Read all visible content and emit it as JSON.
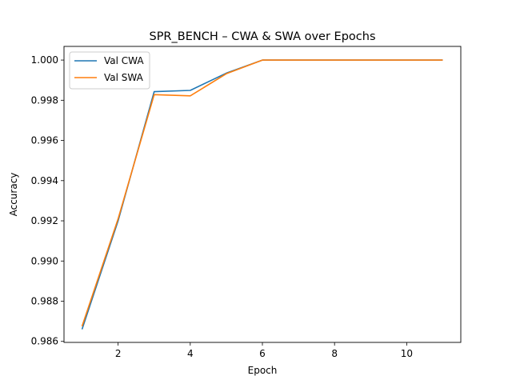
{
  "chart_data": {
    "type": "line",
    "title": "SPR_BENCH – CWA & SWA over Epochs",
    "xlabel": "Epoch",
    "ylabel": "Accuracy",
    "x": [
      1,
      2,
      3,
      4,
      5,
      6,
      7,
      8,
      9,
      10,
      11
    ],
    "xlim": [
      0.5,
      11.5
    ],
    "ylim": [
      0.98595,
      1.00068
    ],
    "xticks": [
      2,
      4,
      6,
      8,
      10
    ],
    "yticks": [
      0.986,
      0.988,
      0.99,
      0.992,
      0.994,
      0.996,
      0.998,
      1.0
    ],
    "ytick_labels": [
      "0.986",
      "0.988",
      "0.990",
      "0.992",
      "0.994",
      "0.996",
      "0.998",
      "1.000"
    ],
    "grid": false,
    "legend_position": "top-left",
    "series": [
      {
        "name": "Val CWA",
        "color": "#1f77b4",
        "values": [
          0.9866,
          0.992,
          0.99843,
          0.99849,
          0.99935,
          1.0,
          1.0,
          1.0,
          1.0,
          1.0,
          1.0
        ]
      },
      {
        "name": "Val SWA",
        "color": "#ff7f0e",
        "values": [
          0.98675,
          0.9921,
          0.99828,
          0.99822,
          0.99932,
          1.0,
          1.0,
          1.0,
          1.0,
          1.0,
          1.0
        ]
      }
    ]
  }
}
